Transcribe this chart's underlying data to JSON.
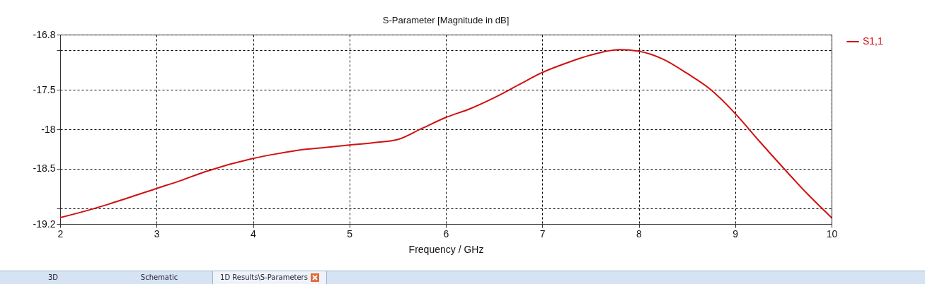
{
  "chart_data": {
    "type": "line",
    "title": "S-Parameter [Magnitude in dB]",
    "xlabel": "Frequency / GHz",
    "x": [
      2,
      2.25,
      2.5,
      3,
      3.25,
      3.5,
      4,
      4.25,
      4.5,
      4.75,
      5,
      5.25,
      5.5,
      5.75,
      6,
      6.25,
      6.5,
      6.75,
      7,
      7.25,
      7.5,
      7.8,
      8,
      8.25,
      8.5,
      8.75,
      9,
      9.25,
      9.5,
      9.75,
      10
    ],
    "series": [
      {
        "name": "S1,1",
        "color": "#d01010",
        "values": [
          -19.12,
          -19.04,
          -18.95,
          -18.75,
          -18.65,
          -18.54,
          -18.37,
          -18.31,
          -18.26,
          -18.23,
          -18.2,
          -18.17,
          -18.13,
          -17.99,
          -17.85,
          -17.74,
          -17.6,
          -17.44,
          -17.28,
          -17.16,
          -17.06,
          -16.99,
          -17.01,
          -17.11,
          -17.29,
          -17.5,
          -17.8,
          -18.15,
          -18.49,
          -18.82,
          -19.12
        ]
      }
    ],
    "xlim": [
      2,
      10
    ],
    "xticks": [
      2,
      3,
      4,
      5,
      6,
      7,
      8,
      9,
      10
    ],
    "ylim": [
      -19.2,
      -16.8
    ],
    "yticks": [
      -16.8,
      {
        "value": -17,
        "label": null
      },
      -17.5,
      -18,
      -18.5,
      {
        "value": -19,
        "label": null
      },
      -19.2
    ],
    "grid": true,
    "legend": "top right",
    "marker": "none",
    "line_style": "solid",
    "annotations": [
      "3D",
      "Schematic",
      "1D Results\\S-Parameters"
    ]
  }
}
